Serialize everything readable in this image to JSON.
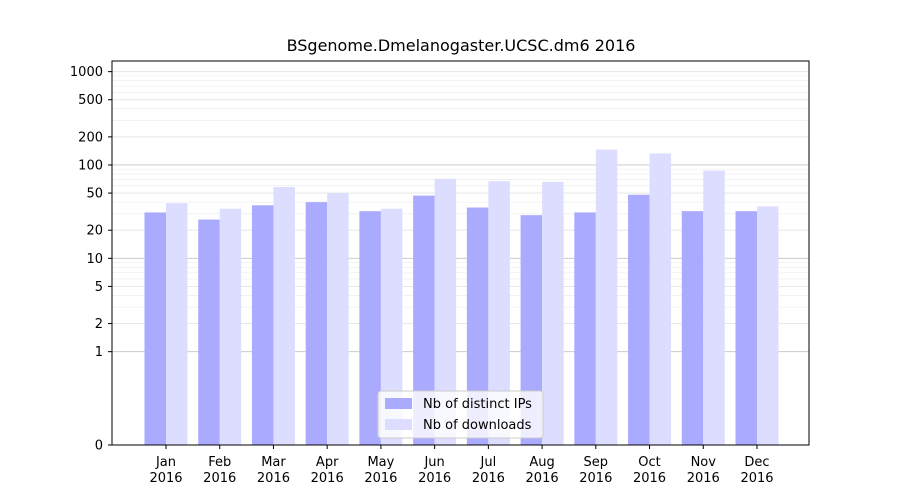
{
  "chart_data": {
    "type": "bar",
    "title": "BSgenome.Dmelanogaster.UCSC.dm6 2016",
    "xlabel": "",
    "ylabel": "",
    "yscale": "symlog",
    "ylim": [
      0,
      1300
    ],
    "yticks": [
      0,
      1,
      2,
      5,
      10,
      20,
      50,
      100,
      200,
      500,
      1000
    ],
    "grid": true,
    "legend_position": "lower center",
    "categories": [
      [
        "Jan",
        "2016"
      ],
      [
        "Feb",
        "2016"
      ],
      [
        "Mar",
        "2016"
      ],
      [
        "Apr",
        "2016"
      ],
      [
        "May",
        "2016"
      ],
      [
        "Jun",
        "2016"
      ],
      [
        "Jul",
        "2016"
      ],
      [
        "Aug",
        "2016"
      ],
      [
        "Sep",
        "2016"
      ],
      [
        "Oct",
        "2016"
      ],
      [
        "Nov",
        "2016"
      ],
      [
        "Dec",
        "2016"
      ]
    ],
    "series": [
      {
        "name": "Nb of distinct IPs",
        "color": "#aaaaff",
        "values": [
          31,
          26,
          37,
          40,
          32,
          47,
          35,
          29,
          31,
          48,
          32,
          32
        ]
      },
      {
        "name": "Nb of downloads",
        "color": "#ddddff",
        "values": [
          39,
          34,
          58,
          50,
          34,
          71,
          67,
          66,
          146,
          133,
          87,
          36
        ]
      }
    ]
  }
}
